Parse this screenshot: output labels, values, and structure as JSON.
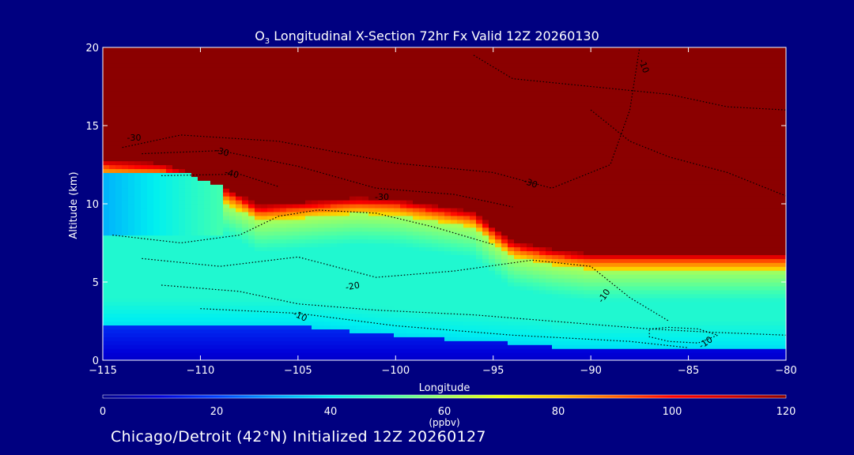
{
  "chart_data": {
    "type": "heatmap",
    "title_prefix": "O",
    "title_sub": "3",
    "title_rest": " Longitudinal X-Section 72hr  Fx Valid 12Z 20260130",
    "xlabel": "Longitude",
    "ylabel": "Altitude (km)",
    "xlim": [
      -115,
      -80
    ],
    "ylim": [
      0,
      20
    ],
    "x_ticks": [
      -115,
      -110,
      -105,
      -100,
      -95,
      -90,
      -85,
      -80
    ],
    "x_tick_labels": [
      "−115",
      "−110",
      "−105",
      "−100",
      "−95",
      "−90",
      "−85",
      "−80"
    ],
    "y_ticks": [
      0,
      5,
      10,
      15,
      20
    ],
    "y_tick_labels": [
      "0",
      "5",
      "10",
      "15",
      "20"
    ],
    "colorbar": {
      "min": 0,
      "max": 120,
      "ticks": [
        0,
        20,
        40,
        60,
        80,
        100,
        120
      ],
      "tick_labels": [
        "0",
        "20",
        "40",
        "60",
        "80",
        "100",
        "120"
      ],
      "units": "(ppbv)",
      "colors": [
        "#00008a",
        "#0000d8",
        "#0040ff",
        "#00a0ff",
        "#00f0f0",
        "#40ffb0",
        "#a0ff60",
        "#f0ff00",
        "#ffc000",
        "#ff6000",
        "#ff0000",
        "#d00000",
        "#8b0000"
      ]
    },
    "field_description": "ozone mixing ratio (ppbv)",
    "tropopause_km": [
      [
        -115,
        12.8
      ],
      [
        -112,
        12.6
      ],
      [
        -111,
        12.2
      ],
      [
        -110,
        11.6
      ],
      [
        -109,
        11.2
      ],
      [
        -108,
        10.6
      ],
      [
        -107,
        9.9
      ],
      [
        -106,
        10.0
      ],
      [
        -104,
        10.2
      ],
      [
        -102,
        10.4
      ],
      [
        -100,
        10.3
      ],
      [
        -98,
        9.9
      ],
      [
        -96,
        9.5
      ],
      [
        -95,
        8.5
      ],
      [
        -94,
        7.6
      ],
      [
        -92,
        7.1
      ],
      [
        -90,
        6.8
      ],
      [
        -85,
        6.8
      ],
      [
        -80,
        6.8
      ]
    ],
    "contour_labels": [
      {
        "text": "-30",
        "lon": -113.4,
        "alt": 14.2,
        "rot": 0
      },
      {
        "text": "-30",
        "lon": -108.9,
        "alt": 13.3,
        "rot": 15
      },
      {
        "text": "-40",
        "lon": -108.4,
        "alt": 11.9,
        "rot": 15
      },
      {
        "text": "-30",
        "lon": -100.7,
        "alt": 10.4,
        "rot": 0
      },
      {
        "text": "-30",
        "lon": -93.1,
        "alt": 11.3,
        "rot": 20
      },
      {
        "text": "-10",
        "lon": -87.3,
        "alt": 18.8,
        "rot": 70
      },
      {
        "text": "-20",
        "lon": -102.2,
        "alt": 4.7,
        "rot": -10
      },
      {
        "text": "-10",
        "lon": -104.9,
        "alt": 2.8,
        "rot": 25
      },
      {
        "text": "-10",
        "lon": -89.3,
        "alt": 4.1,
        "rot": -55
      },
      {
        "text": "-10",
        "lon": -84.1,
        "alt": 1.1,
        "rot": -35
      }
    ]
  },
  "footer": "Chicago/Detroit (42°N) Initialized 12Z 20260127"
}
